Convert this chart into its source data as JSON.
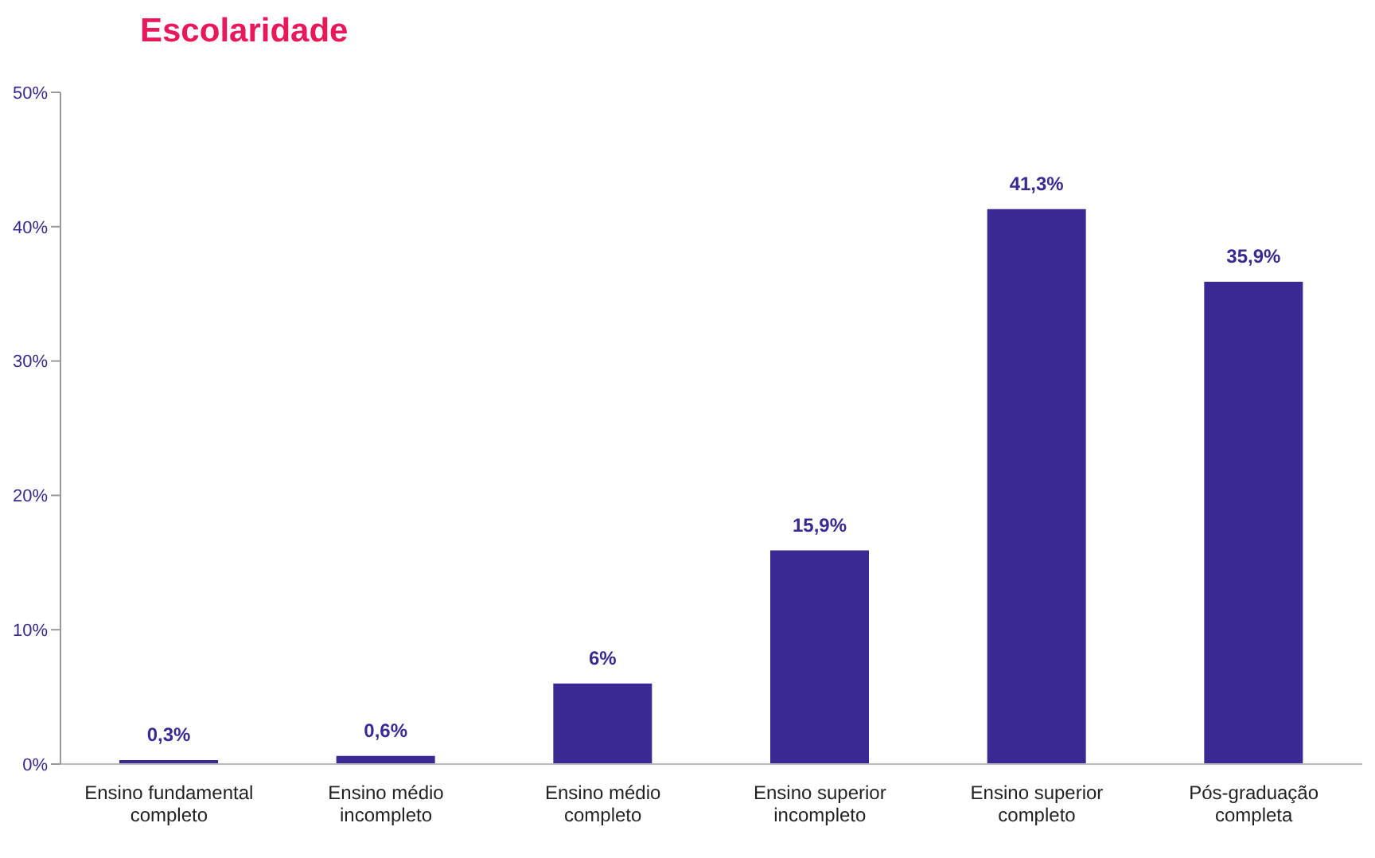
{
  "chart_data": {
    "type": "bar",
    "title": "Escolaridade",
    "categories": [
      "Ensino fundamental completo",
      "Ensino médio incompleto",
      "Ensino médio completo",
      "Ensino superior incompleto",
      "Ensino superior completo",
      "Pós-graduação completa"
    ],
    "values": [
      0.3,
      0.6,
      6,
      15.9,
      41.3,
      35.9
    ],
    "value_labels": [
      "0,3%",
      "0,6%",
      "6%",
      "15,9%",
      "41,3%",
      "35,9%"
    ],
    "color": "#3b2993",
    "ylim": [
      0,
      50
    ],
    "yticks": [
      {
        "value": 0,
        "label": "0%"
      },
      {
        "value": 10,
        "label": "10%"
      },
      {
        "value": 20,
        "label": "20%"
      },
      {
        "value": 30,
        "label": "30%"
      },
      {
        "value": 40,
        "label": "40%"
      },
      {
        "value": 50,
        "label": "50%"
      }
    ],
    "grid": false
  }
}
